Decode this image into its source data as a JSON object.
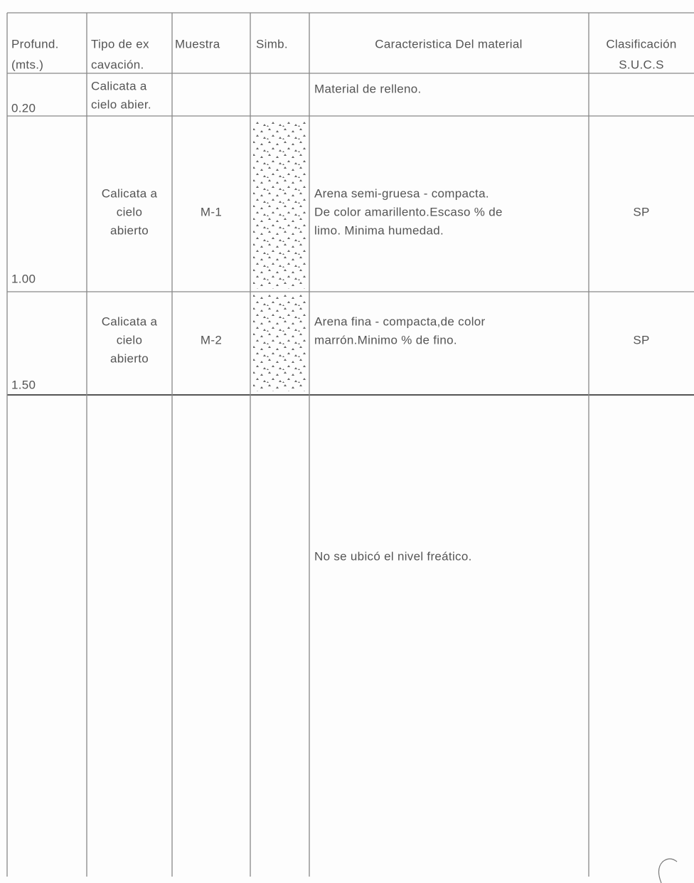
{
  "table": {
    "header": [
      [
        "Profund.",
        "(mts.)"
      ],
      [
        "Tipo de ex",
        "cavación."
      ],
      [
        "Muestra"
      ],
      [
        "Simb."
      ],
      [
        "Caracteristica Del material"
      ],
      [
        "Clasificación",
        "S.U.C.S"
      ]
    ],
    "rows": [
      {
        "depth": "0.20",
        "excavation": [
          "Calicata a",
          "cielo abier."
        ],
        "description": [
          "Material de relleno."
        ]
      },
      {
        "depth": "1.00",
        "excavation": [
          "Calicata a",
          "cielo",
          "abierto"
        ],
        "sample": "M-1",
        "description": [
          "Arena semi-gruesa - compacta.",
          "De color amarillento.Escaso % de",
          "limo. Minima humedad."
        ],
        "classification": "SP"
      },
      {
        "depth": "1.50",
        "excavation": [
          "Calicata a",
          "cielo",
          "abierto"
        ],
        "sample": "M-2",
        "description": [
          "Arena fina - compacta,de color",
          "marrón.Minimo % de fino."
        ],
        "classification": "SP"
      },
      {
        "description": [
          "No se ubicó el nivel freático."
        ]
      }
    ]
  }
}
